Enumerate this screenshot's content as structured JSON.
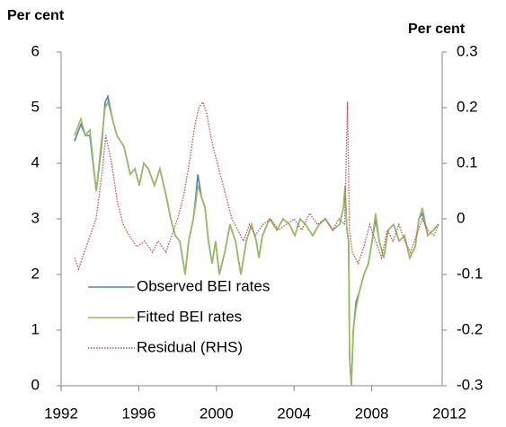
{
  "chart_data": {
    "type": "line",
    "y_label": "Per cent",
    "y2_label": "Per cent",
    "xlim": [
      1992,
      2012
    ],
    "xticks": [
      1992,
      1996,
      2000,
      2004,
      2008,
      2012
    ],
    "ylim": [
      0,
      6
    ],
    "yticks": [
      0,
      1,
      2,
      3,
      4,
      5,
      6
    ],
    "y2lim": [
      -0.3,
      0.3
    ],
    "y2ticks": [
      -0.3,
      -0.2,
      -0.1,
      0,
      0.1,
      0.2,
      0.3
    ],
    "legend": "lower-left",
    "series": [
      {
        "name": "Observed BEI rates",
        "color": "#4f81bd",
        "x": [
          1992.69,
          1993.02,
          1993.25,
          1993.48,
          1993.81,
          1994.08,
          1994.27,
          1994.41,
          1994.64,
          1994.87,
          1995.24,
          1995.56,
          1995.8,
          1996.03,
          1996.26,
          1996.49,
          1996.81,
          1997.09,
          1997.42,
          1997.65,
          1997.88,
          1998.11,
          1998.3,
          1998.39,
          1998.57,
          1998.81,
          1998.94,
          1999.04,
          1999.22,
          1999.41,
          1999.59,
          1999.78,
          1999.96,
          2000.15,
          2000.43,
          2000.7,
          2000.98,
          2001.26,
          2001.54,
          2001.81,
          2002.05,
          2002.19,
          2002.37,
          2002.74,
          2003.11,
          2003.44,
          2003.76,
          2004.04,
          2004.31,
          2004.59,
          2004.96,
          2005.29,
          2005.61,
          2005.98,
          2006.35,
          2006.54,
          2006.63,
          2006.72,
          2006.81,
          2006.86,
          2006.95,
          2007.05,
          2007.19,
          2007.37,
          2007.6,
          2007.83,
          2008.02,
          2008.2,
          2008.39,
          2008.62,
          2008.85,
          2009.13,
          2009.41,
          2009.69,
          2009.96,
          2010.24,
          2010.43,
          2010.61,
          2010.89,
          2011.17,
          2011.44
        ],
        "values": [
          4.4,
          4.7,
          4.5,
          4.5,
          3.5,
          4.3,
          5.1,
          5.2,
          4.8,
          4.5,
          4.3,
          3.8,
          3.9,
          3.6,
          4.0,
          3.9,
          3.6,
          3.9,
          3.4,
          3.0,
          2.7,
          2.6,
          2.2,
          2.0,
          2.6,
          3.0,
          3.4,
          3.8,
          3.4,
          3.2,
          2.6,
          2.2,
          2.6,
          2.0,
          2.4,
          2.9,
          2.6,
          2.0,
          2.6,
          2.9,
          2.6,
          2.3,
          2.7,
          3.0,
          2.8,
          3.0,
          2.9,
          2.7,
          3.0,
          2.9,
          2.7,
          2.9,
          3.0,
          2.8,
          2.9,
          3.2,
          3.5,
          2.8,
          2.6,
          0.5,
          0.0,
          1.0,
          1.5,
          1.7,
          2.0,
          2.2,
          2.6,
          3.0,
          2.6,
          2.3,
          2.8,
          2.9,
          2.6,
          2.7,
          2.3,
          2.5,
          3.0,
          3.1,
          2.7,
          2.8,
          2.9
        ]
      },
      {
        "name": "Fitted BEI rates",
        "color": "#9bbb59",
        "x": [
          1992.69,
          1993.02,
          1993.25,
          1993.48,
          1993.81,
          1994.08,
          1994.27,
          1994.41,
          1994.64,
          1994.87,
          1995.24,
          1995.56,
          1995.8,
          1996.03,
          1996.26,
          1996.49,
          1996.81,
          1997.09,
          1997.42,
          1997.65,
          1997.88,
          1998.11,
          1998.3,
          1998.39,
          1998.57,
          1998.81,
          1998.94,
          1999.04,
          1999.22,
          1999.41,
          1999.59,
          1999.78,
          1999.96,
          2000.15,
          2000.43,
          2000.7,
          2000.98,
          2001.26,
          2001.54,
          2001.81,
          2002.05,
          2002.19,
          2002.37,
          2002.74,
          2003.11,
          2003.44,
          2003.76,
          2004.04,
          2004.31,
          2004.59,
          2004.96,
          2005.29,
          2005.61,
          2005.98,
          2006.35,
          2006.54,
          2006.63,
          2006.72,
          2006.81,
          2006.86,
          2006.95,
          2007.05,
          2007.19,
          2007.37,
          2007.6,
          2007.83,
          2008.02,
          2008.2,
          2008.39,
          2008.62,
          2008.85,
          2009.13,
          2009.41,
          2009.69,
          2009.96,
          2010.24,
          2010.43,
          2010.61,
          2010.89,
          2011.17,
          2011.44
        ],
        "values": [
          4.5,
          4.8,
          4.5,
          4.6,
          3.5,
          4.4,
          5.0,
          5.1,
          4.8,
          4.5,
          4.3,
          3.8,
          3.9,
          3.6,
          4.0,
          3.9,
          3.6,
          3.9,
          3.4,
          3.0,
          2.7,
          2.6,
          2.2,
          2.0,
          2.6,
          3.0,
          3.3,
          3.6,
          3.4,
          3.2,
          2.6,
          2.2,
          2.6,
          2.0,
          2.4,
          2.9,
          2.6,
          2.0,
          2.6,
          2.9,
          2.6,
          2.3,
          2.7,
          3.0,
          2.8,
          3.0,
          2.9,
          2.7,
          3.0,
          2.9,
          2.7,
          2.9,
          3.0,
          2.8,
          2.9,
          3.2,
          3.6,
          2.8,
          2.6,
          0.5,
          0.0,
          1.0,
          1.4,
          1.7,
          2.0,
          2.2,
          2.6,
          3.1,
          2.6,
          2.3,
          2.8,
          2.9,
          2.6,
          2.7,
          2.3,
          2.5,
          3.0,
          3.2,
          2.7,
          2.8,
          2.9
        ]
      },
      {
        "name": "Residual (RHS)",
        "color": "#c0504d",
        "axis": "y2",
        "x": [
          1992.69,
          1992.9,
          1993.2,
          1993.5,
          1993.8,
          1994.1,
          1994.3,
          1994.6,
          1994.9,
          1995.2,
          1995.5,
          1995.9,
          1996.3,
          1996.7,
          1997.0,
          1997.4,
          1997.7,
          1998.0,
          1998.3,
          1998.6,
          1998.9,
          1999.1,
          1999.3,
          1999.5,
          1999.7,
          1999.9,
          2000.2,
          2000.5,
          2000.8,
          2001.1,
          2001.4,
          2001.7,
          2002.0,
          2002.4,
          2002.8,
          2003.2,
          2003.6,
          2004.0,
          2004.4,
          2004.8,
          2005.2,
          2005.6,
          2006.0,
          2006.3,
          2006.6,
          2006.75,
          2006.85,
          2007.0,
          2007.3,
          2007.6,
          2007.9,
          2008.2,
          2008.5,
          2008.8,
          2009.1,
          2009.4,
          2009.7,
          2010.0,
          2010.3,
          2010.6,
          2010.9,
          2011.2,
          2011.44
        ],
        "values": [
          -0.07,
          -0.09,
          -0.06,
          -0.03,
          0.0,
          0.08,
          0.15,
          0.1,
          0.03,
          -0.01,
          -0.03,
          -0.05,
          -0.04,
          -0.06,
          -0.04,
          -0.06,
          -0.03,
          0.0,
          0.04,
          0.1,
          0.17,
          0.2,
          0.21,
          0.19,
          0.15,
          0.12,
          0.08,
          0.04,
          0.0,
          -0.02,
          -0.04,
          -0.01,
          -0.03,
          -0.01,
          0.0,
          -0.02,
          -0.01,
          0.0,
          -0.02,
          0.01,
          -0.01,
          0.0,
          -0.02,
          0.0,
          -0.01,
          0.21,
          -0.02,
          -0.06,
          -0.08,
          -0.05,
          -0.01,
          -0.04,
          -0.07,
          -0.02,
          -0.04,
          -0.01,
          -0.04,
          -0.06,
          -0.03,
          0.0,
          -0.02,
          -0.03,
          -0.01
        ]
      }
    ]
  }
}
